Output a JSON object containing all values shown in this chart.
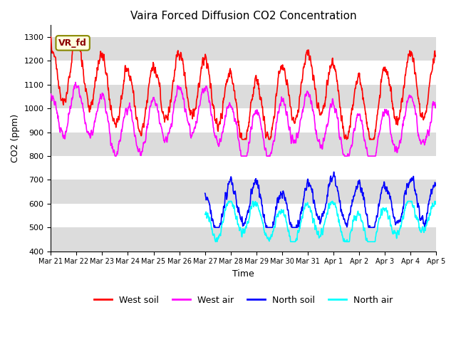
{
  "title": "Vaira Forced Diffusion CO2 Concentration",
  "xlabel": "Time",
  "ylabel": "CO2 (ppm)",
  "ylim": [
    400,
    1350
  ],
  "label_tag": "VR_fd",
  "legend": [
    "West soil",
    "West air",
    "North soil",
    "North air"
  ],
  "colors": [
    "red",
    "magenta",
    "blue",
    "cyan"
  ],
  "xtick_labels": [
    "Mar 21",
    "Mar 22",
    "Mar 23",
    "Mar 24",
    "Mar 25",
    "Mar 26",
    "Mar 27",
    "Mar 28",
    "Mar 29",
    "Mar 30",
    "Mar 31",
    "Apr 1",
    "Apr 2",
    "Apr 3",
    "Apr 4",
    "Apr 5"
  ],
  "stripe_color": "#dcdcdc",
  "linewidth": 1.2,
  "figsize": [
    6.4,
    4.8
  ],
  "dpi": 100
}
